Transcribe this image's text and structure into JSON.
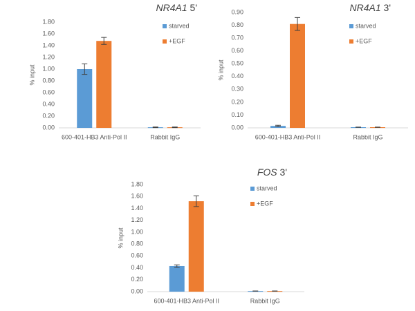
{
  "chart_data": [
    {
      "type": "bar",
      "title": "NR4A1 5'",
      "y_label": "% input",
      "categories": [
        "600-401-HB3 Anti-Pol II",
        "Rabbit IgG"
      ],
      "series": [
        {
          "name": "starved",
          "color": "#5b9bd5",
          "values": [
            1.0,
            0.01
          ],
          "errors": [
            0.09,
            0.005
          ]
        },
        {
          "name": "+EGF",
          "color": "#ed7d31",
          "values": [
            1.48,
            0.01
          ],
          "errors": [
            0.06,
            0.005
          ]
        }
      ],
      "ylim": [
        0,
        1.8
      ],
      "yticks": [
        {
          "value": 0,
          "label": "0.00"
        },
        {
          "value": 0.2,
          "label": "0.20"
        },
        {
          "value": 0.4,
          "label": "0.40"
        },
        {
          "value": 0.6,
          "label": "0.60"
        },
        {
          "value": 0.8,
          "label": "0.80"
        },
        {
          "value": 1.0,
          "label": "1.00"
        },
        {
          "value": 1.2,
          "label": "1.20"
        },
        {
          "value": 1.4,
          "label": "1.40"
        },
        {
          "value": 1.6,
          "label": "1.60"
        },
        {
          "value": 1.8,
          "label": "1.80"
        }
      ]
    },
    {
      "type": "bar",
      "title": "NR4A1 3'",
      "y_label": "% input",
      "categories": [
        "600-401-HB3 Anti-Pol II",
        "Rabbit IgG"
      ],
      "series": [
        {
          "name": "starved",
          "color": "#5b9bd5",
          "values": [
            0.015,
            0.005
          ],
          "errors": [
            0.005,
            0.001
          ]
        },
        {
          "name": "+EGF",
          "color": "#ed7d31",
          "values": [
            0.81,
            0.005
          ],
          "errors": [
            0.05,
            0.001
          ]
        }
      ],
      "ylim": [
        0,
        0.9
      ],
      "yticks": [
        {
          "value": 0,
          "label": "0.00"
        },
        {
          "value": 0.1,
          "label": "0.10"
        },
        {
          "value": 0.2,
          "label": "0.20"
        },
        {
          "value": 0.3,
          "label": "0.30"
        },
        {
          "value": 0.4,
          "label": "0.40"
        },
        {
          "value": 0.5,
          "label": "0.50"
        },
        {
          "value": 0.6,
          "label": "0.60"
        },
        {
          "value": 0.7,
          "label": "0.70"
        },
        {
          "value": 0.8,
          "label": "0.80"
        },
        {
          "value": 0.9,
          "label": "0.90"
        }
      ]
    },
    {
      "type": "bar",
      "title": "FOS 3'",
      "y_label": "% input",
      "categories": [
        "600-401-HB3 Anti-Pol II",
        "Rabbit IgG"
      ],
      "series": [
        {
          "name": "starved",
          "color": "#5b9bd5",
          "values": [
            0.43,
            0.01
          ],
          "errors": [
            0.02,
            0.001
          ]
        },
        {
          "name": "+EGF",
          "color": "#ed7d31",
          "values": [
            1.52,
            0.01
          ],
          "errors": [
            0.09,
            0.001
          ]
        }
      ],
      "ylim": [
        0,
        1.8
      ],
      "yticks": [
        {
          "value": 0,
          "label": "0.00"
        },
        {
          "value": 0.2,
          "label": "0.20"
        },
        {
          "value": 0.4,
          "label": "0.40"
        },
        {
          "value": 0.6,
          "label": "0.60"
        },
        {
          "value": 0.8,
          "label": "0.80"
        },
        {
          "value": 1.0,
          "label": "1.00"
        },
        {
          "value": 1.2,
          "label": "1.20"
        },
        {
          "value": 1.4,
          "label": "1.40"
        },
        {
          "value": 1.6,
          "label": "1.60"
        },
        {
          "value": 1.8,
          "label": "1.80"
        }
      ]
    }
  ]
}
